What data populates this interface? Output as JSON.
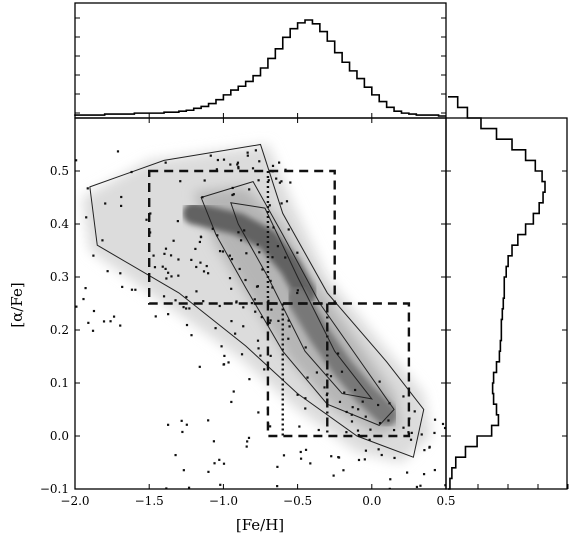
{
  "chart_data": {
    "type": "heatmap",
    "main_panel": {
      "xlabel": "[Fe/H]",
      "ylabel": "[α/Fe]",
      "xlim": [
        -2.0,
        0.5
      ],
      "ylim": [
        -0.1,
        0.6
      ],
      "xticks": [
        -2.0,
        -1.5,
        -1.0,
        -0.5,
        0.0,
        0.5
      ],
      "xtick_labels": [
        "−2.0",
        "−1.5",
        "−1.0",
        "−0.5",
        "0.0",
        "0.5"
      ],
      "yticks": [
        -0.1,
        0.0,
        0.1,
        0.2,
        0.3,
        0.4,
        0.5
      ],
      "ytick_labels": [
        "−0.1",
        "0.0",
        "0.1",
        "0.2",
        "0.3",
        "0.4",
        "0.5"
      ],
      "grid": false,
      "density_ridges": [
        {
          "name": "metal-poor high-alpha ridge",
          "points": [
            [
              -1.2,
              0.42
            ],
            [
              -0.9,
              0.4
            ],
            [
              -0.7,
              0.37
            ],
            [
              -0.55,
              0.32
            ],
            [
              -0.45,
              0.27
            ]
          ],
          "peak": 0.75
        },
        {
          "name": "metal-rich ridge",
          "points": [
            [
              -0.5,
              0.26
            ],
            [
              -0.35,
              0.19
            ],
            [
              -0.2,
              0.13
            ],
            [
              -0.05,
              0.08
            ],
            [
              0.1,
              0.04
            ]
          ],
          "peak": 0.55
        }
      ],
      "selection_boxes": [
        {
          "id": "box-high-alpha",
          "style": "dashed",
          "fe_h": [
            -1.5,
            -0.25
          ],
          "alpha_fe": [
            0.25,
            0.5
          ]
        },
        {
          "id": "box-low-alpha",
          "style": "dashed",
          "fe_h": [
            -0.7,
            0.25
          ],
          "alpha_fe": [
            0.0,
            0.25
          ]
        },
        {
          "id": "divider-upper",
          "style": "dotted",
          "fe_h": -0.7,
          "alpha_fe": [
            0.25,
            0.5
          ]
        },
        {
          "id": "divider-lower",
          "style": "dotted",
          "fe_h": -0.6,
          "alpha_fe": [
            0.0,
            0.25
          ]
        },
        {
          "id": "divider-dashdot",
          "style": "dash-dot",
          "fe_h": -0.3,
          "alpha_fe": [
            0.0,
            0.25
          ]
        }
      ]
    },
    "top_histogram": {
      "variable": "[Fe/H]",
      "bin_edges_start": -2.0,
      "bin_width": 0.05,
      "counts_relative": [
        0.01,
        0.01,
        0.01,
        0.01,
        0.02,
        0.02,
        0.02,
        0.02,
        0.03,
        0.03,
        0.03,
        0.03,
        0.04,
        0.04,
        0.05,
        0.06,
        0.08,
        0.1,
        0.13,
        0.17,
        0.22,
        0.27,
        0.31,
        0.36,
        0.42,
        0.5,
        0.6,
        0.7,
        0.82,
        0.91,
        0.97,
        1.0,
        0.96,
        0.88,
        0.78,
        0.66,
        0.56,
        0.47,
        0.39,
        0.3,
        0.22,
        0.15,
        0.09,
        0.05,
        0.03,
        0.02,
        0.01,
        0.01,
        0.01,
        0.0
      ]
    },
    "right_histogram": {
      "variable": "[α/Fe]",
      "bin_edges_start": -0.1,
      "bin_width": 0.02,
      "counts_relative": [
        0.02,
        0.04,
        0.08,
        0.18,
        0.3,
        0.45,
        0.52,
        0.5,
        0.47,
        0.46,
        0.47,
        0.5,
        0.53,
        0.54,
        0.55,
        0.55,
        0.56,
        0.57,
        0.58,
        0.58,
        0.6,
        0.62,
        0.66,
        0.72,
        0.8,
        0.88,
        0.94,
        0.98,
        1.0,
        0.97,
        0.9,
        0.8,
        0.66,
        0.5,
        0.34,
        0.2,
        0.1
      ]
    }
  }
}
